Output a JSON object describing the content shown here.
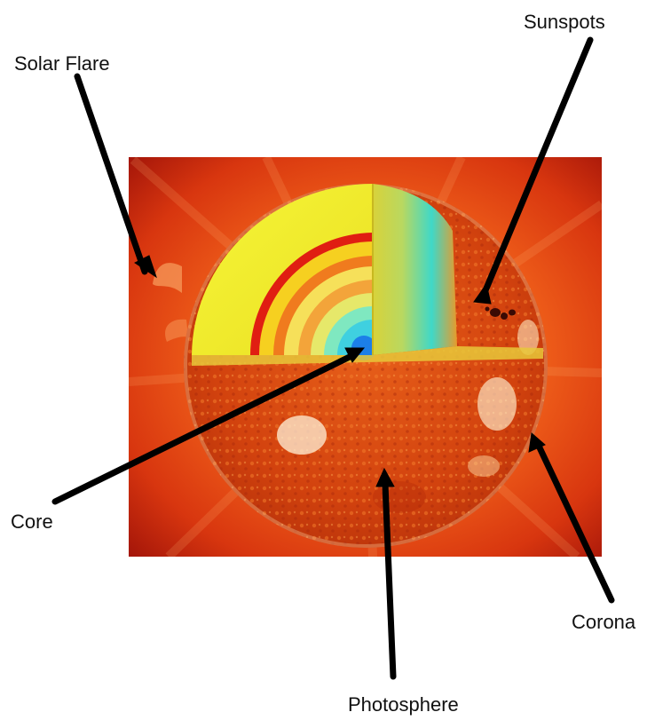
{
  "labels": {
    "sunspots": "Sunspots",
    "solar_flare": "Solar Flare",
    "core": "Core",
    "corona": "Corona",
    "photosphere": "Photosphere"
  },
  "colors": {
    "background": "#ffffff",
    "corona_glow": "#e8470f",
    "corona_dark": "#a5160a",
    "photosphere": "#d9480f",
    "cutaway_yellow": "#f2f230",
    "band_red": "#e21e12",
    "band_cyan": "#38e0d2",
    "core_blue": "#1e88e8",
    "arrow": "#000000"
  }
}
